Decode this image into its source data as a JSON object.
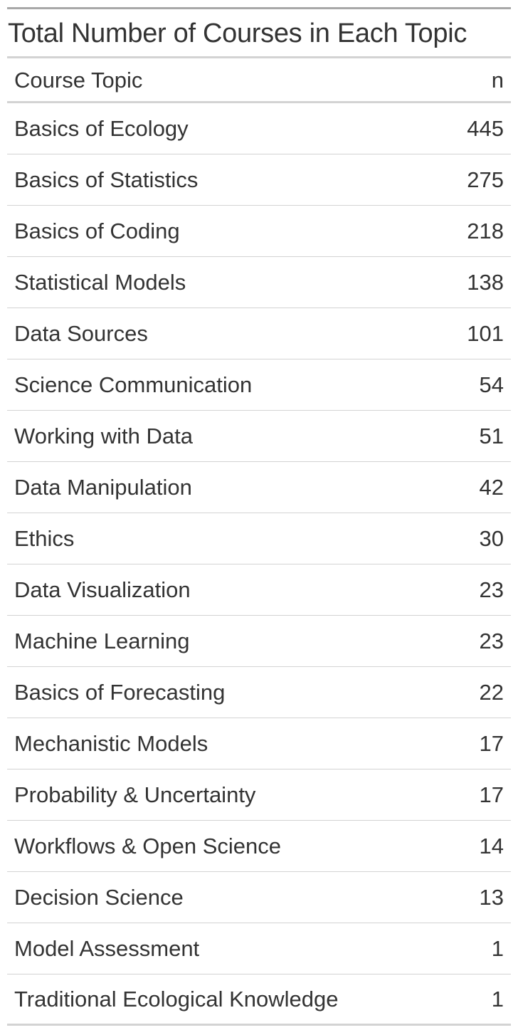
{
  "table": {
    "title": "Total Number of Courses in Each Topic",
    "columns": {
      "topic": "Course Topic",
      "n": "n"
    },
    "rows": [
      {
        "topic": "Basics of Ecology",
        "n": "445"
      },
      {
        "topic": "Basics of Statistics",
        "n": "275"
      },
      {
        "topic": "Basics of Coding",
        "n": "218"
      },
      {
        "topic": "Statistical Models",
        "n": "138"
      },
      {
        "topic": "Data Sources",
        "n": "101"
      },
      {
        "topic": "Science Communication",
        "n": "54"
      },
      {
        "topic": "Working with Data",
        "n": "51"
      },
      {
        "topic": "Data Manipulation",
        "n": "42"
      },
      {
        "topic": "Ethics",
        "n": "30"
      },
      {
        "topic": "Data Visualization",
        "n": "23"
      },
      {
        "topic": "Machine Learning",
        "n": "23"
      },
      {
        "topic": "Basics of Forecasting",
        "n": "22"
      },
      {
        "topic": "Mechanistic Models",
        "n": "17"
      },
      {
        "topic": "Probability & Uncertainty",
        "n": "17"
      },
      {
        "topic": "Workflows & Open Science",
        "n": "14"
      },
      {
        "topic": "Decision Science",
        "n": "13"
      },
      {
        "topic": "Model Assessment",
        "n": "1"
      },
      {
        "topic": "Traditional Ecological Knowledge",
        "n": "1"
      }
    ]
  },
  "colors": {
    "text": "#333333",
    "rule_dark": "#a8a8a8",
    "rule_light": "#d3d3d3"
  }
}
